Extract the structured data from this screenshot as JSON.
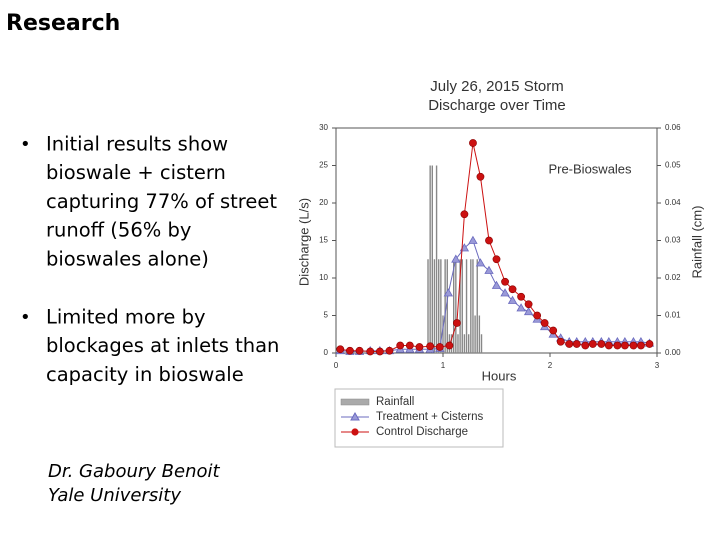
{
  "header": {
    "title": "Research"
  },
  "bullets": [
    [
      "Initial results show",
      "bioswale + cistern",
      "capturing 77% of street",
      "runoff (56% by",
      "bioswales alone)"
    ],
    [
      "Limited more by",
      "blockages at inlets than",
      "capacity in bioswale"
    ]
  ],
  "attribution": [
    "Dr. Gaboury Benoit",
    "Yale University"
  ],
  "chart_data": {
    "type": "line",
    "title": "July 26, 2015 Storm",
    "subtitle": "Discharge over Time",
    "annotation": "Pre-Bioswales",
    "xlabel": "Hours",
    "ylabel": "Discharge (L/s)",
    "y2label": "Rainfall (cm)",
    "xlim": [
      0,
      3
    ],
    "xticks": [
      0,
      1,
      2,
      3
    ],
    "ylim": [
      0,
      30
    ],
    "yticks": [
      0,
      5,
      10,
      15,
      20,
      25,
      30
    ],
    "y2lim": [
      0,
      0.06
    ],
    "y2ticks": [
      {
        "value": 0,
        "label": "0.00"
      },
      {
        "value": 0.01,
        "label": "0.01"
      },
      {
        "value": 0.02,
        "label": "0.02"
      },
      {
        "value": 0.03,
        "label": "0.03"
      },
      {
        "value": 0.04,
        "label": "0.04"
      },
      {
        "value": 0.05,
        "label": "0.05"
      },
      {
        "value": 0.06,
        "label": "0.06"
      }
    ],
    "legend": "bottom-left",
    "series": [
      {
        "name": "Rainfall",
        "type": "bar",
        "axis": "y2",
        "color": "#888888",
        "x": [
          0.86,
          0.88,
          0.9,
          0.92,
          0.94,
          0.96,
          0.98,
          1.0,
          1.02,
          1.04,
          1.06,
          1.08,
          1.1,
          1.12,
          1.14,
          1.16,
          1.18,
          1.2,
          1.22,
          1.24,
          1.26,
          1.28,
          1.3,
          1.32,
          1.34,
          1.36
        ],
        "values": [
          0.025,
          0.05,
          0.05,
          0.025,
          0.05,
          0.025,
          0.025,
          0.01,
          0.025,
          0.025,
          0.005,
          0.005,
          0.025,
          0.025,
          0.005,
          0.025,
          0.025,
          0.005,
          0.025,
          0.005,
          0.025,
          0.025,
          0.01,
          0.025,
          0.01,
          0.005
        ]
      },
      {
        "name": "Treatment + Cisterns",
        "type": "line",
        "marker": "triangle",
        "color": "#6b6bbf",
        "x": [
          0.04,
          0.13,
          0.22,
          0.32,
          0.41,
          0.5,
          0.6,
          0.69,
          0.78,
          0.88,
          0.97,
          1.05,
          1.12,
          1.2,
          1.28,
          1.35,
          1.43,
          1.5,
          1.58,
          1.65,
          1.73,
          1.8,
          1.88,
          1.95,
          2.03,
          2.1,
          2.18,
          2.25,
          2.33,
          2.4,
          2.48,
          2.55,
          2.63,
          2.7,
          2.78,
          2.85,
          2.93
        ],
        "values": [
          0.3,
          0.2,
          0.2,
          0.3,
          0.3,
          0.3,
          0.5,
          0.5,
          0.5,
          0.5,
          0.6,
          8,
          12.5,
          14,
          15,
          12,
          11,
          9,
          8,
          7,
          6,
          5.5,
          4.5,
          3.5,
          2.5,
          2,
          1.5,
          1.5,
          1.5,
          1.5,
          1.5,
          1.5,
          1.5,
          1.5,
          1.5,
          1.5,
          1.3
        ]
      },
      {
        "name": "Control Discharge",
        "type": "line",
        "marker": "circle",
        "color": "#cc1111",
        "x": [
          0.04,
          0.13,
          0.22,
          0.32,
          0.41,
          0.5,
          0.6,
          0.69,
          0.78,
          0.88,
          0.97,
          1.06,
          1.13,
          1.2,
          1.28,
          1.35,
          1.43,
          1.5,
          1.58,
          1.65,
          1.73,
          1.8,
          1.88,
          1.95,
          2.03,
          2.1,
          2.18,
          2.25,
          2.33,
          2.4,
          2.48,
          2.55,
          2.63,
          2.7,
          2.78,
          2.85,
          2.93
        ],
        "values": [
          0.5,
          0.3,
          0.3,
          0.2,
          0.2,
          0.3,
          1,
          1,
          0.8,
          0.9,
          0.8,
          1,
          4,
          18.5,
          28,
          23.5,
          15,
          12.5,
          9.5,
          8.5,
          7.5,
          6.5,
          5,
          4,
          3,
          1.5,
          1.2,
          1.2,
          1,
          1.2,
          1.2,
          1,
          1,
          1,
          1,
          1,
          1.2
        ]
      }
    ]
  }
}
